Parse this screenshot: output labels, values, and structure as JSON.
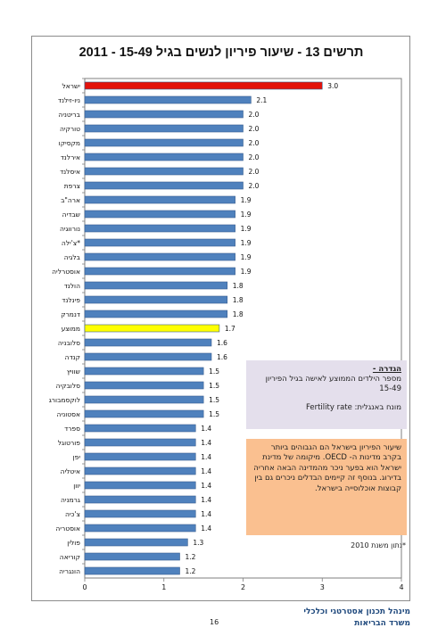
{
  "chart_data": {
    "type": "bar",
    "orientation": "horizontal",
    "title": "תרשים 13 - שיעור פיריון לנשים בגיל 15-49 - 2011",
    "categories": [
      "ישראל",
      "ניו-זילנד",
      "בריטניה",
      "טורקיה",
      "מקסיקו",
      "אירלנד",
      "איסלנד",
      "צרפת",
      "ארה\"ב",
      "שבדיה",
      "נורווגיה",
      "צ'ילה*",
      "בלגיה",
      "אוסטרליה",
      "הולנד",
      "פינלנד",
      "דנמרק",
      "ממוצע",
      "סלובניה",
      "קנדה",
      "שוויץ",
      "סלובקיה",
      "לוקסמבורג",
      "אסטוניה",
      "ספרד",
      "פורטוגל",
      "יפן",
      "איטליה",
      "יוון",
      "גרמניה",
      "צ'כיה",
      "אוסטריה",
      "פולין",
      "קוריאה",
      "הונגריה"
    ],
    "values": [
      3.0,
      2.1,
      2.0,
      2.0,
      2.0,
      2.0,
      2.0,
      2.0,
      1.9,
      1.9,
      1.9,
      1.9,
      1.9,
      1.9,
      1.8,
      1.8,
      1.8,
      1.7,
      1.6,
      1.6,
      1.5,
      1.5,
      1.5,
      1.5,
      1.4,
      1.4,
      1.4,
      1.4,
      1.4,
      1.4,
      1.4,
      1.4,
      1.3,
      1.2,
      1.2
    ],
    "value_labels": [
      "3.0",
      "2.1",
      "2.0",
      "2.0",
      "2.0",
      "2.0",
      "2.0",
      "2.0",
      "1.9",
      "1.9",
      "1.9",
      "1.9",
      "1.9",
      "1.9",
      "1.8",
      "1.8",
      "1.8",
      "1.7",
      "1.6",
      "1.6",
      "1.5",
      "1.5",
      "1.5",
      "1.5",
      "1.4",
      "1.4",
      "1.4",
      "1.4",
      "1.4",
      "1.4",
      "1.4",
      "1.4",
      "1.3",
      "1.2",
      "1.2"
    ],
    "bar_colors": {
      "ישראל": "#e3120b",
      "ממוצע": "#ffff00"
    },
    "default_color": "#4f81bd",
    "xlim": [
      0,
      4
    ],
    "xticks": [
      "0",
      "1",
      "2",
      "3",
      "4"
    ],
    "grid": false,
    "legend": "none"
  },
  "definition": {
    "title": "הגדרה -",
    "text": "מספר הילדים הממוצע לאישה בגיל הפיריון 15-49",
    "english_label": "מונח באנגלית: Fertility rate"
  },
  "note": {
    "text": "שיעור הפיריון בישראל הם הגבוהים ביותר בקרב מדינות ה- OECD. מיקומה של מדינת ישראל הוא בפער ניכר מהמדינה הבאה אחריה בדירוג. בנוסף זה קיימים הבדלים ניכרים גם בין קבוצות אוכלוסייה בישראל."
  },
  "source": "*נתון משנת 2010",
  "footer": {
    "line1": "מינהל תכנון אסטרטגי וכלכלי",
    "line2": "משרד הבריאות"
  },
  "page_number": "16"
}
